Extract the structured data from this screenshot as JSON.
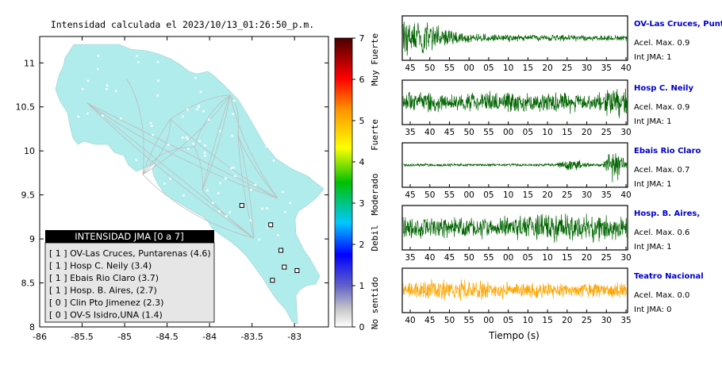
{
  "map": {
    "title": "Intensidad calculada el 2023/10/13_01:26:50_p.m.",
    "x_ticks": [
      "-86",
      "-85.5",
      "-85",
      "-84.5",
      "-84",
      "-83.5",
      "-83"
    ],
    "y_ticks": [
      "11",
      "10.5",
      "10",
      "9.5",
      "9",
      "8.5",
      "8"
    ],
    "xlim": [
      -86,
      -82.6
    ],
    "ylim": [
      8,
      11.3
    ],
    "land_color": "#b0ecec",
    "stations": [
      {
        "lon": -83.62,
        "lat": 9.38
      },
      {
        "lon": -83.28,
        "lat": 9.16
      },
      {
        "lon": -83.16,
        "lat": 8.87
      },
      {
        "lon": -83.12,
        "lat": 8.68
      },
      {
        "lon": -82.97,
        "lat": 8.64
      },
      {
        "lon": -83.26,
        "lat": 8.53
      }
    ]
  },
  "legend": {
    "title": "INTENSIDAD JMA [0 a 7]",
    "items": [
      "[ 1 ]  OV-Las Cruces, Puntarenas (4.6)",
      "[ 1 ]  Hosp C. Neily (3.4)",
      "[ 1 ]  Ebais Rio Claro (3.7)",
      "[ 1 ]  Hosp. B. Aires, (2.7)",
      "[ 0 ]  Clin Pto Jimenez (2.3)",
      "[ 0 ]  OV-S Isidro,UNA (1.4)"
    ]
  },
  "colorbar": {
    "ticks": [
      "7",
      "6",
      "5",
      "4",
      "3",
      "2",
      "1",
      "0"
    ],
    "range": [
      0,
      7
    ],
    "category_labels": [
      "Muy Fuerte",
      "Fuerte",
      "Moderado",
      "Debil",
      "No sentido"
    ]
  },
  "chart_data": {
    "type": "line",
    "xlabel": "Tiempo (s)",
    "traces": [
      {
        "name": "OV-Las Cruces, Puntar",
        "acel_label": "Acel. Max. 0.9",
        "int_label": "Int JMA: 1",
        "color": "#006400",
        "ticks": [
          "45",
          "50",
          "55",
          "00",
          "05",
          "10",
          "15",
          "20",
          "25",
          "30",
          "35",
          "40"
        ]
      },
      {
        "name": "Hosp C. Neily",
        "acel_label": "Acel. Max. 0.9",
        "int_label": "Int JMA: 1",
        "color": "#006400",
        "ticks": [
          "35",
          "40",
          "45",
          "50",
          "55",
          "00",
          "05",
          "10",
          "15",
          "20",
          "25",
          "30"
        ]
      },
      {
        "name": "Ebais Rio Claro",
        "acel_label": "Acel. Max. 0.7",
        "int_label": "Int JMA: 1",
        "color": "#006400",
        "ticks": [
          "45",
          "50",
          "55",
          "00",
          "05",
          "10",
          "15",
          "20",
          "25",
          "30",
          "35",
          "40"
        ]
      },
      {
        "name": "Hosp. B. Aires,",
        "acel_label": "Acel. Max. 0.6",
        "int_label": "Int JMA: 1",
        "color": "#006400",
        "ticks": [
          "35",
          "40",
          "45",
          "50",
          "55",
          "00",
          "05",
          "10",
          "15",
          "20",
          "25",
          "30"
        ]
      },
      {
        "name": "Teatro Nacional",
        "acel_label": "Acel. Max. 0.0",
        "int_label": "Int JMA: 0",
        "color": "#ffa500",
        "ticks": [
          "40",
          "45",
          "50",
          "55",
          "00",
          "05",
          "10",
          "15",
          "20",
          "25",
          "30",
          "35"
        ]
      }
    ]
  }
}
